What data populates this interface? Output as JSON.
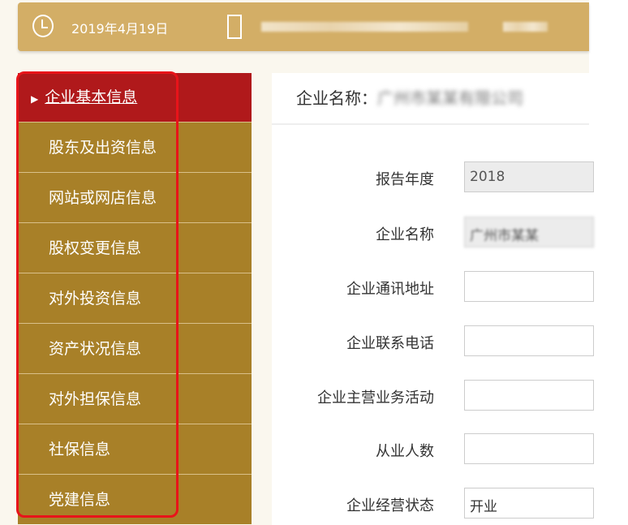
{
  "header": {
    "date": "2019年4月19日",
    "company": "广州市某某有限公司",
    "user": "某某"
  },
  "sidebar": {
    "items": [
      {
        "label": "企业基本信息",
        "active": true
      },
      {
        "label": "股东及出资信息"
      },
      {
        "label": "网站或网店信息"
      },
      {
        "label": "股权变更信息"
      },
      {
        "label": "对外投资信息"
      },
      {
        "label": "资产状况信息"
      },
      {
        "label": "对外担保信息"
      },
      {
        "label": "社保信息"
      },
      {
        "label": "党建信息"
      }
    ]
  },
  "content": {
    "title_label": "企业名称：",
    "title_value": "广州市某某有限公司",
    "fields": [
      {
        "label": "报告年度",
        "value": "2018"
      },
      {
        "label": "企业名称",
        "value": "广州市某某"
      },
      {
        "label": "企业通讯地址",
        "value": ""
      },
      {
        "label": "企业联系电话",
        "value": ""
      },
      {
        "label": "企业主营业务活动",
        "value": ""
      },
      {
        "label": "从业人数",
        "value": ""
      },
      {
        "label": "企业经营状态",
        "value": "开业"
      }
    ]
  },
  "colors": {
    "header": "#d3ae66",
    "nav": "#a88028",
    "nav_active": "#b0191b",
    "highlight": "#e8141a"
  }
}
